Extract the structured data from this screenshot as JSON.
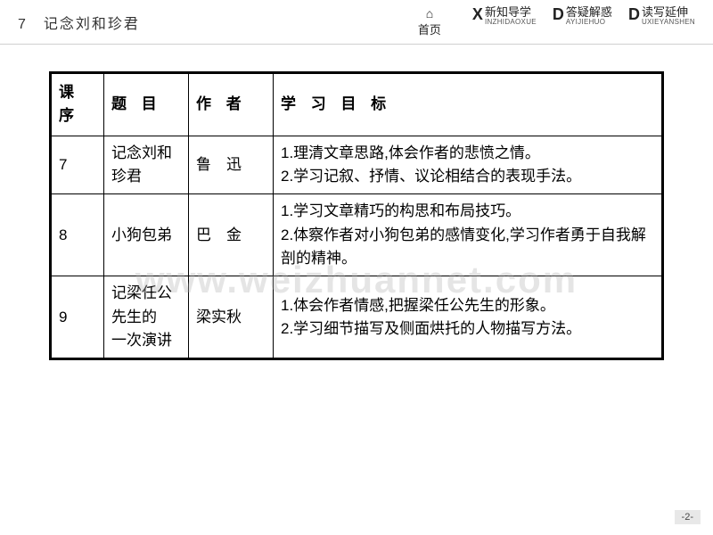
{
  "header": {
    "title": "7　记念刘和珍君",
    "nav": [
      {
        "icon": "⌂",
        "label": "首页",
        "sub": ""
      },
      {
        "big": "X",
        "label": "新知导学",
        "sub": "INZHIDAOXUE"
      },
      {
        "big": "D",
        "label": "答疑解惑",
        "sub": "AYIJIEHUO"
      },
      {
        "big": "D",
        "label": "读写延伸",
        "sub": "UXIEYANSHEN"
      }
    ]
  },
  "table": {
    "headers": [
      "课 序",
      "题 目",
      "作 者",
      "学 习 目 标"
    ],
    "rows": [
      {
        "seq": "7",
        "title": "记念刘和珍君",
        "author": "鲁　迅",
        "goals": "1.理清文章思路,体会作者的悲愤之情。\n2.学习记叙、抒情、议论相结合的表现手法。"
      },
      {
        "seq": "8",
        "title": "小狗包弟",
        "author": "巴　金",
        "goals": "1.学习文章精巧的构思和布局技巧。\n2.体察作者对小狗包弟的感情变化,学习作者勇于自我解剖的精神。"
      },
      {
        "seq": "9",
        "title": "记梁任公先生的\n一次演讲",
        "author": "梁实秋",
        "goals": "1.体会作者情感,把握梁任公先生的形象。\n2.学习细节描写及侧面烘托的人物描写方法。"
      }
    ]
  },
  "watermark": "www.weizhuannet.com",
  "pageNum": "-2-"
}
